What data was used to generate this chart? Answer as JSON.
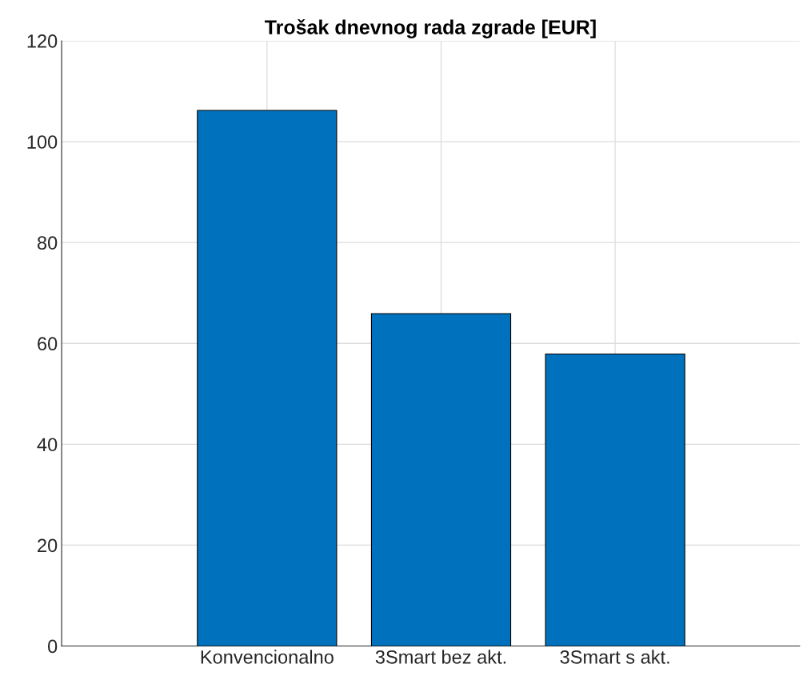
{
  "chart_data": {
    "type": "bar",
    "title": "Trošak dnevnog rada zgrade [EUR]",
    "categories": [
      "Konvencionalno",
      "3Smart bez akt.",
      "3Smart s akt."
    ],
    "values": [
      106.2,
      65.9,
      57.9
    ],
    "color": "#0072bd",
    "ylim": [
      0,
      120
    ],
    "yticks": [
      0,
      20,
      40,
      60,
      80,
      100,
      120
    ],
    "grid": true
  }
}
